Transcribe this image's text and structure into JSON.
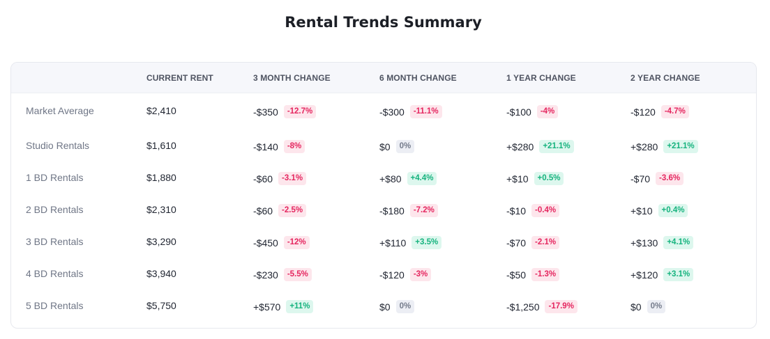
{
  "title": "Rental Trends Summary",
  "colors": {
    "negative": "#e5265f",
    "positive": "#16b37e",
    "neutral": "#757c8c"
  },
  "columns": [
    "",
    "CURRENT RENT",
    "3 MONTH CHANGE",
    "6 MONTH CHANGE",
    "1 YEAR CHANGE",
    "2 YEAR CHANGE"
  ],
  "rows": [
    {
      "label": "Market Average",
      "current": "$2,410",
      "changes": [
        {
          "amount": "-$350",
          "pct": "-12.7%",
          "tone": "neg"
        },
        {
          "amount": "-$300",
          "pct": "-11.1%",
          "tone": "neg"
        },
        {
          "amount": "-$100",
          "pct": "-4%",
          "tone": "neg"
        },
        {
          "amount": "-$120",
          "pct": "-4.7%",
          "tone": "neg"
        }
      ]
    },
    {
      "label": "Studio Rentals",
      "current": "$1,610",
      "changes": [
        {
          "amount": "-$140",
          "pct": "-8%",
          "tone": "neg"
        },
        {
          "amount": "$0",
          "pct": "0%",
          "tone": "neu"
        },
        {
          "amount": "+$280",
          "pct": "+21.1%",
          "tone": "pos"
        },
        {
          "amount": "+$280",
          "pct": "+21.1%",
          "tone": "pos"
        }
      ]
    },
    {
      "label": "1 BD Rentals",
      "current": "$1,880",
      "changes": [
        {
          "amount": "-$60",
          "pct": "-3.1%",
          "tone": "neg"
        },
        {
          "amount": "+$80",
          "pct": "+4.4%",
          "tone": "pos"
        },
        {
          "amount": "+$10",
          "pct": "+0.5%",
          "tone": "pos"
        },
        {
          "amount": "-$70",
          "pct": "-3.6%",
          "tone": "neg"
        }
      ]
    },
    {
      "label": "2 BD Rentals",
      "current": "$2,310",
      "changes": [
        {
          "amount": "-$60",
          "pct": "-2.5%",
          "tone": "neg"
        },
        {
          "amount": "-$180",
          "pct": "-7.2%",
          "tone": "neg"
        },
        {
          "amount": "-$10",
          "pct": "-0.4%",
          "tone": "neg"
        },
        {
          "amount": "+$10",
          "pct": "+0.4%",
          "tone": "pos"
        }
      ]
    },
    {
      "label": "3 BD Rentals",
      "current": "$3,290",
      "changes": [
        {
          "amount": "-$450",
          "pct": "-12%",
          "tone": "neg"
        },
        {
          "amount": "+$110",
          "pct": "+3.5%",
          "tone": "pos"
        },
        {
          "amount": "-$70",
          "pct": "-2.1%",
          "tone": "neg"
        },
        {
          "amount": "+$130",
          "pct": "+4.1%",
          "tone": "pos"
        }
      ]
    },
    {
      "label": "4 BD Rentals",
      "current": "$3,940",
      "changes": [
        {
          "amount": "-$230",
          "pct": "-5.5%",
          "tone": "neg"
        },
        {
          "amount": "-$120",
          "pct": "-3%",
          "tone": "neg"
        },
        {
          "amount": "-$50",
          "pct": "-1.3%",
          "tone": "neg"
        },
        {
          "amount": "+$120",
          "pct": "+3.1%",
          "tone": "pos"
        }
      ]
    },
    {
      "label": "5 BD Rentals",
      "current": "$5,750",
      "changes": [
        {
          "amount": "+$570",
          "pct": "+11%",
          "tone": "pos"
        },
        {
          "amount": "$0",
          "pct": "0%",
          "tone": "neu"
        },
        {
          "amount": "-$1,250",
          "pct": "-17.9%",
          "tone": "neg"
        },
        {
          "amount": "$0",
          "pct": "0%",
          "tone": "neu"
        }
      ]
    }
  ]
}
